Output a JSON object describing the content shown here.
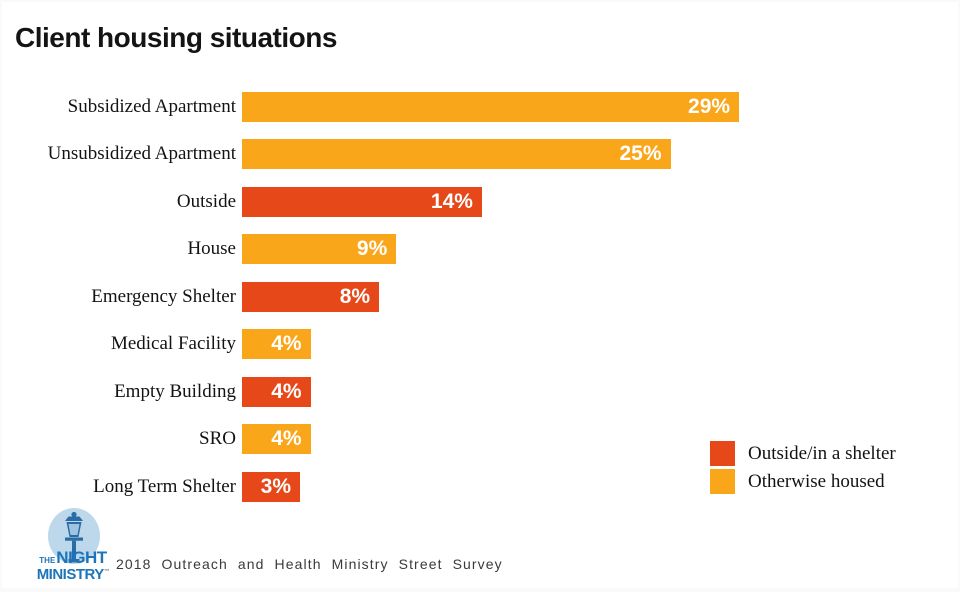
{
  "page": {
    "title": "Client housing situations"
  },
  "colors": {
    "outside": "#e6481a",
    "housed": "#faa61b"
  },
  "chart_data": {
    "type": "bar",
    "orientation": "horizontal",
    "title": "Client housing situations",
    "xlabel": "",
    "ylabel": "",
    "xlim": [
      0,
      29
    ],
    "grid": false,
    "value_suffix": "%",
    "categories": [
      "Subsidized Apartment",
      "Unsubsidized Apartment",
      "Outside",
      "House",
      "Emergency Shelter",
      "Medical Facility",
      "Empty Building",
      "SRO",
      "Long Term Shelter"
    ],
    "values": [
      29,
      25,
      14,
      9,
      8,
      4,
      4,
      4,
      3
    ],
    "groups": [
      "housed",
      "housed",
      "outside",
      "housed",
      "outside",
      "housed",
      "outside",
      "housed",
      "outside"
    ],
    "value_labels": [
      "29%",
      "25%",
      "14%",
      "9%",
      "8%",
      "4%",
      "4%",
      "4%",
      "3%"
    ],
    "legend_position": "right-bottom"
  },
  "legend": {
    "items": [
      {
        "label": "Outside/in a shelter",
        "color_key": "outside"
      },
      {
        "label": "Otherwise housed",
        "color_key": "housed"
      }
    ]
  },
  "footer": {
    "caption": "2018 Outreach and Health Ministry Street Survey",
    "logo": {
      "the": "THE",
      "night": "NIGHT",
      "ministry": "MINISTRY",
      "trademark": "™"
    }
  }
}
